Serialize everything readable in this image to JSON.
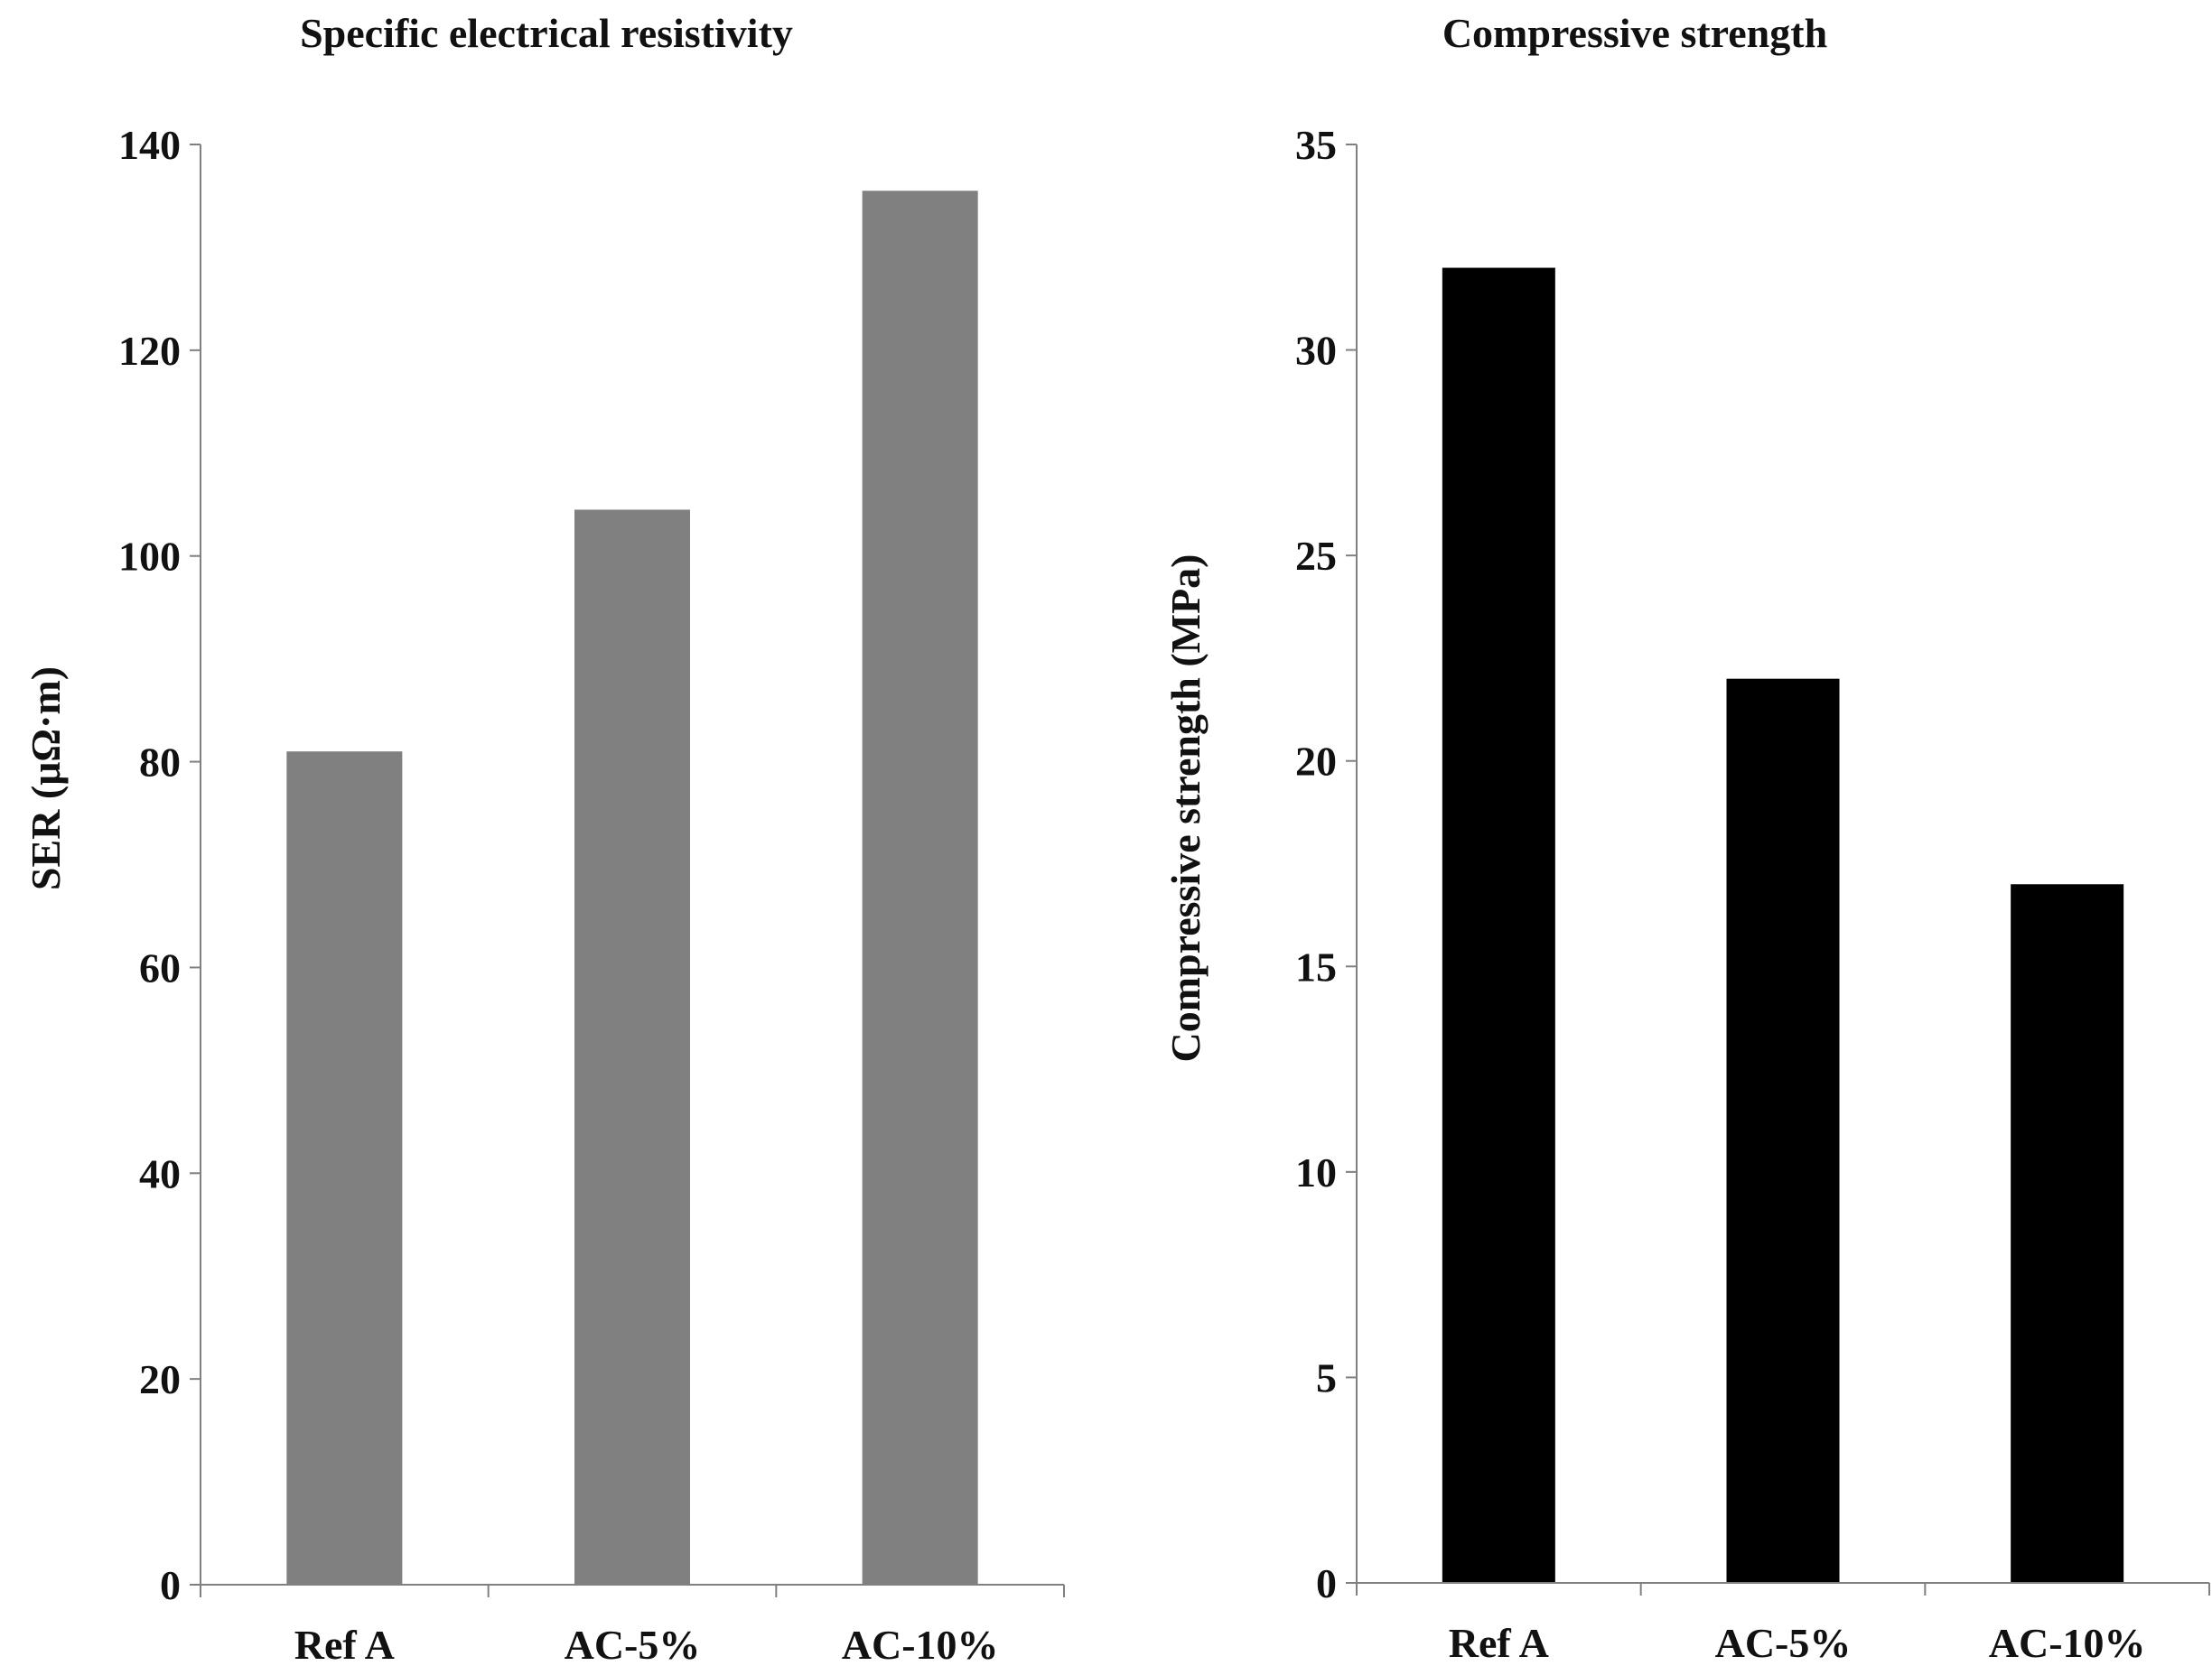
{
  "chart_data": [
    {
      "type": "bar",
      "title": "Specific electrical resistivity",
      "xlabel": "",
      "ylabel": "SER  (μΩ·m)",
      "categories": [
        "Ref A",
        "AC-5%",
        "AC-10%"
      ],
      "values": [
        81,
        104.5,
        135.5
      ],
      "ylim": [
        0,
        140
      ],
      "yticks": [
        "0",
        "20",
        "40",
        "60",
        "80",
        "100",
        "120",
        "140"
      ],
      "bar_color": "#808080",
      "grid": false,
      "legend": "none"
    },
    {
      "type": "bar",
      "title": "Compressive strength",
      "xlabel": "",
      "ylabel": "Compressive strength (MPa)",
      "categories": [
        "Ref A",
        "AC-5%",
        "AC-10%"
      ],
      "values": [
        32,
        22,
        17
      ],
      "ylim": [
        0,
        35
      ],
      "yticks": [
        "0",
        "5",
        "10",
        "15",
        "20",
        "25",
        "30",
        "35"
      ],
      "bar_color": "#000000",
      "grid": false,
      "legend": "none"
    }
  ],
  "colors": {
    "axis": "#808080",
    "text": "#111111"
  }
}
